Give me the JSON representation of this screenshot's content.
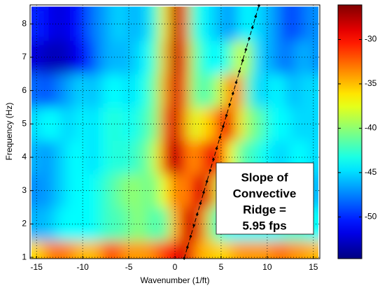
{
  "chart_data": {
    "type": "heatmap",
    "xlabel": "Wavenumber (1/ft)",
    "ylabel": "Frequency (Hz)",
    "xlim": [
      -15.7,
      15.7
    ],
    "ylim": [
      0.96,
      8.57
    ],
    "clim": [
      -54.7,
      -26.1
    ],
    "xticks": [
      -15,
      -10,
      -5,
      0,
      5,
      10,
      15
    ],
    "yticks": [
      1,
      2,
      3,
      4,
      5,
      6,
      7,
      8
    ],
    "cticks": [
      -50,
      -45,
      -40,
      -35,
      -30
    ],
    "grid": true,
    "colormap": "jet",
    "x": [
      -15,
      -14,
      -13,
      -12,
      -11,
      -10,
      -9,
      -8,
      -7,
      -6,
      -5,
      -4,
      -3,
      -2,
      -1,
      0,
      1,
      2,
      3,
      4,
      5,
      6,
      7,
      8,
      9,
      10,
      11,
      12,
      13,
      14,
      15
    ],
    "y": [
      1,
      2,
      3,
      4,
      5,
      6,
      7,
      8
    ],
    "z": [
      [
        -36,
        -34,
        -33,
        -33,
        -34,
        -35,
        -35,
        -34,
        -31,
        -33,
        -34,
        -34,
        -34,
        -33,
        -31,
        -30,
        -28,
        -32,
        -35,
        -35,
        -36,
        -35,
        -34,
        -34,
        -34,
        -34,
        -33,
        -33,
        -34,
        -34,
        -35
      ],
      [
        -46,
        -46,
        -45,
        -44,
        -44,
        -44,
        -44,
        -43,
        -42,
        -42,
        -41,
        -40,
        -41,
        -42,
        -41,
        -35,
        -29,
        -28,
        -33,
        -40,
        -43,
        -44,
        -44,
        -44,
        -44,
        -44,
        -44,
        -43,
        -43,
        -43,
        -44
      ],
      [
        -47,
        -47,
        -46,
        -45,
        -44,
        -44,
        -44,
        -43,
        -42,
        -41,
        -40,
        -40,
        -41,
        -40,
        -37,
        -32,
        -34,
        -30,
        -28,
        -33,
        -39,
        -42,
        -43,
        -44,
        -44,
        -44,
        -45,
        -45,
        -45,
        -45,
        -46
      ],
      [
        -46,
        -47,
        -46,
        -45,
        -44,
        -44,
        -45,
        -44,
        -43,
        -43,
        -43,
        -42,
        -41,
        -38,
        -30,
        -27,
        -31,
        -34,
        -32,
        -29,
        -30,
        -37,
        -41,
        -42,
        -43,
        -44,
        -45,
        -45,
        -44,
        -44,
        -45
      ],
      [
        -45,
        -44,
        -44,
        -45,
        -45,
        -44,
        -45,
        -44,
        -43,
        -43,
        -44,
        -43,
        -42,
        -40,
        -32,
        -28,
        -33,
        -38,
        -36,
        -35,
        -30,
        -29,
        -36,
        -40,
        -41,
        -43,
        -44,
        -44,
        -45,
        -45,
        -45
      ],
      [
        -48,
        -49,
        -48,
        -47,
        -46,
        -45,
        -46,
        -45,
        -44,
        -44,
        -45,
        -44,
        -43,
        -40,
        -34,
        -28,
        -32,
        -40,
        -42,
        -41,
        -38,
        -33,
        -34,
        -42,
        -45,
        -45,
        -44,
        -45,
        -46,
        -45,
        -45
      ],
      [
        -52,
        -53,
        -53,
        -53,
        -52,
        -51,
        -49,
        -47,
        -46,
        -46,
        -46,
        -45,
        -44,
        -41,
        -35,
        -27,
        -31,
        -40,
        -43,
        -44,
        -44,
        -42,
        -38,
        -40,
        -45,
        -46,
        -47,
        -48,
        -47,
        -46,
        -47
      ],
      [
        -50,
        -51,
        -52,
        -52,
        -51,
        -50,
        -48,
        -47,
        -46,
        -45,
        -46,
        -46,
        -45,
        -42,
        -36,
        -27,
        -32,
        -42,
        -44,
        -45,
        -46,
        -47,
        -45,
        -44,
        -45,
        -46,
        -47,
        -49,
        -49,
        -48,
        -47
      ]
    ],
    "ridge": {
      "x": [
        1,
        9.1
      ],
      "y": [
        0.97,
        8.55
      ]
    },
    "annotation": [
      "Slope of",
      "Convective",
      "Ridge =",
      "5.95 fps"
    ]
  }
}
